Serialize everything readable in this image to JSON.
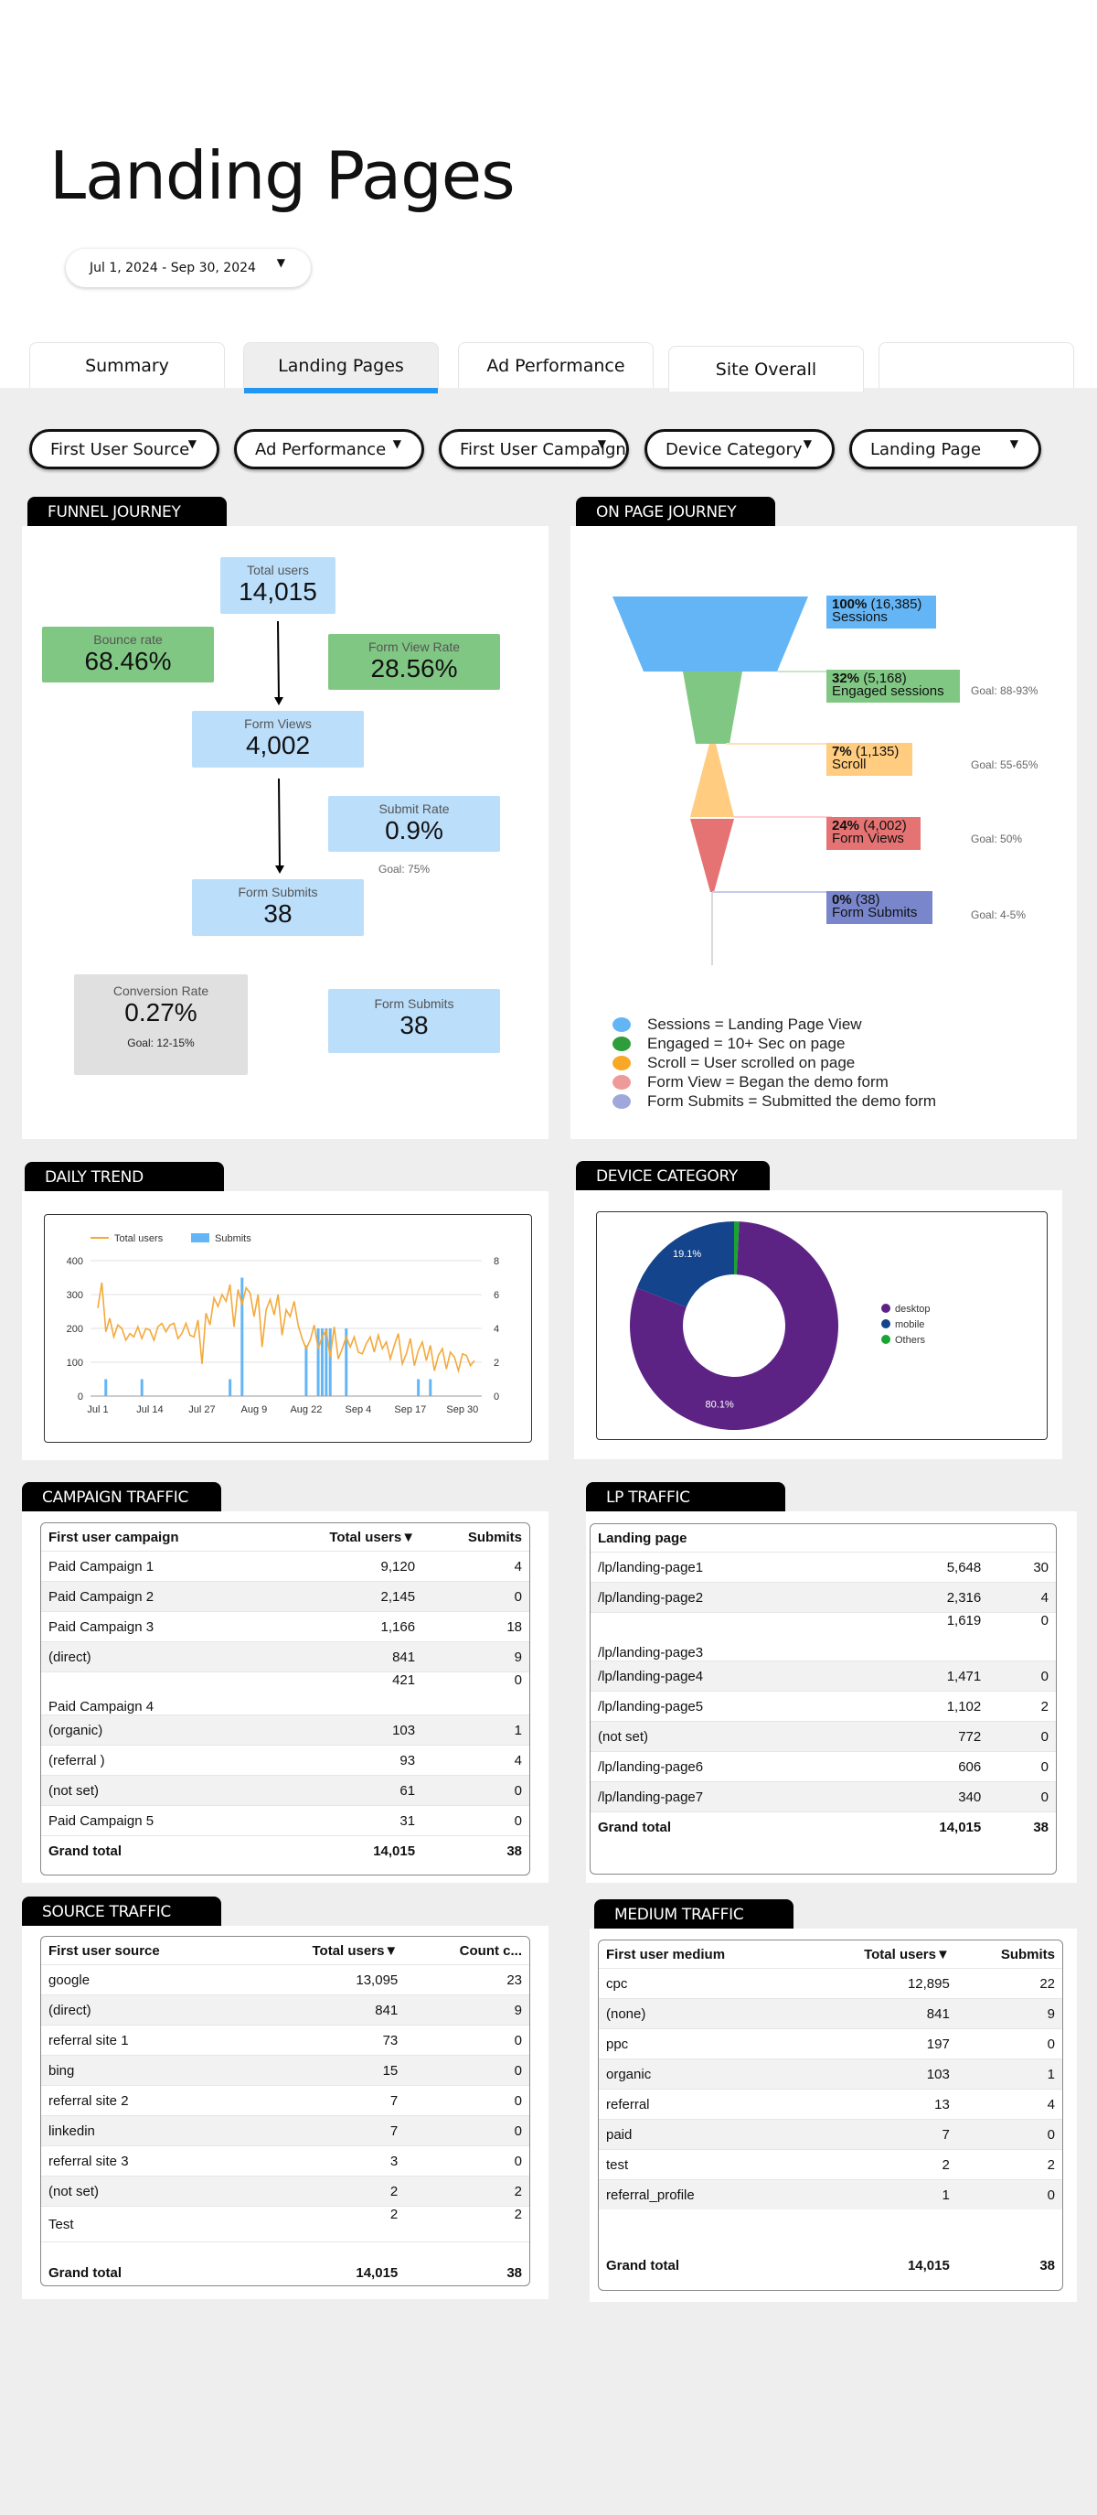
{
  "page_title": "Landing Pages",
  "date_range": "Jul 1, 2024 - Sep 30, 2024",
  "tabs": [
    "Summary",
    "Landing Pages",
    "Ad Performance",
    "Site Overall",
    ""
  ],
  "active_tab": 1,
  "filters": [
    "First User Source",
    "Ad Performance",
    "First User Campaign",
    "Device Category",
    "Landing Page"
  ],
  "funnel_journey": {
    "title": "FUNNEL JOURNEY",
    "total_users_label": "Total users",
    "total_users": "14,015",
    "bounce_rate_label": "Bounce rate",
    "bounce_rate": "68.46%",
    "form_view_rate_label": "Form View Rate",
    "form_view_rate": "28.56%",
    "form_views_label": "Form Views",
    "form_views": "4,002",
    "submit_rate_label": "Submit Rate",
    "submit_rate": "0.9%",
    "submit_goal": "Goal: 75%",
    "form_submits_label": "Form Submits",
    "form_submits": "38",
    "conversion_rate_label": "Conversion Rate",
    "conversion_rate": "0.27%",
    "conversion_goal": "Goal: 12-15%",
    "form_submits2_label": "Form Submits",
    "form_submits2": "38"
  },
  "on_page_journey": {
    "title": "ON PAGE JOURNEY",
    "stages": [
      {
        "pct": "100%",
        "count": "(16,385)",
        "name": "Sessions",
        "goal": "",
        "color": "#64b5f6"
      },
      {
        "pct": "32%",
        "count": "(5,168)",
        "name": "Engaged sessions",
        "goal": "Goal: 88-93%",
        "color": "#81c784"
      },
      {
        "pct": "7%",
        "count": "(1,135)",
        "name": "Scroll",
        "goal": "Goal: 55-65%",
        "color": "#ffb74d"
      },
      {
        "pct": "24%",
        "count": "(4,002)",
        "name": "Form Views",
        "goal": "Goal: 50%",
        "color": "#e57373"
      },
      {
        "pct": "0%",
        "count": "(38)",
        "name": "Form Submits",
        "goal": "Goal: 4-5%",
        "color": "#7986cb"
      }
    ],
    "legend": [
      {
        "text": "Sessions = Landing Page View",
        "color": "#64b5f6"
      },
      {
        "text": "Engaged = 10+ Sec on page",
        "color": "#2e9d3a"
      },
      {
        "text": "Scroll = User scrolled on page",
        "color": "#f9a825"
      },
      {
        "text": "Form View = Began the demo form",
        "color": "#ef9a9a"
      },
      {
        "text": "Form Submits = Submitted the demo form",
        "color": "#9fa8da"
      }
    ]
  },
  "daily_trend": {
    "title": "DAILY TREND",
    "legend": {
      "users": "Total users",
      "submits": "Submits"
    },
    "colors": {
      "users": "#f4a93a",
      "submits": "#64b5f6"
    },
    "left_ticks": [
      "0",
      "100",
      "200",
      "300",
      "400"
    ],
    "right_ticks": [
      "0",
      "2",
      "4",
      "6",
      "8"
    ],
    "x_ticks": [
      "Jul 1",
      "Jul 14",
      "Jul 27",
      "Aug 9",
      "Aug 22",
      "Sep 4",
      "Sep 17",
      "Sep 30"
    ]
  },
  "chart_data": [
    {
      "type": "line",
      "title": "",
      "series": [
        {
          "name": "Total users",
          "axis": "left",
          "values": [
            260,
            335,
            190,
            230,
            175,
            210,
            200,
            165,
            185,
            175,
            205,
            170,
            200,
            195,
            165,
            205,
            215,
            190,
            210,
            215,
            170,
            185,
            215,
            180,
            175,
            225,
            95,
            245,
            210,
            290,
            265,
            300,
            280,
            330,
            205,
            315,
            270,
            320,
            305,
            235,
            300,
            145,
            255,
            285,
            240,
            300,
            180,
            255,
            235,
            280,
            210,
            170,
            140,
            165,
            210,
            140,
            175,
            195,
            115,
            205,
            110,
            140,
            175,
            145,
            175,
            130,
            125,
            155,
            175,
            130,
            180,
            140,
            160,
            110,
            150,
            185,
            95,
            125,
            170,
            90,
            135,
            160,
            105,
            150,
            75,
            120,
            140,
            80,
            130,
            115,
            75,
            125,
            120,
            90,
            105
          ]
        },
        {
          "name": "Submits",
          "axis": "right",
          "type": "bar",
          "values": [
            0,
            0,
            1,
            0,
            0,
            0,
            0,
            0,
            0,
            0,
            0,
            1,
            0,
            0,
            0,
            0,
            0,
            0,
            0,
            0,
            0,
            0,
            0,
            0,
            0,
            0,
            0,
            0,
            0,
            0,
            0,
            0,
            0,
            1,
            0,
            0,
            7,
            0,
            0,
            0,
            0,
            0,
            0,
            0,
            0,
            0,
            0,
            0,
            0,
            0,
            0,
            0,
            3,
            0,
            0,
            4,
            4,
            4,
            4,
            0,
            0,
            0,
            4,
            0,
            0,
            0,
            0,
            0,
            0,
            0,
            0,
            0,
            0,
            0,
            0,
            0,
            0,
            0,
            0,
            0,
            1,
            0,
            0,
            1,
            0,
            0,
            0,
            0,
            0,
            0,
            0,
            0,
            0,
            0,
            0
          ]
        }
      ],
      "ylim_left": [
        0,
        400
      ],
      "ylim_right": [
        0,
        8
      ]
    },
    {
      "type": "pie",
      "title": "",
      "categories": [
        "desktop",
        "mobile",
        "Others"
      ],
      "values": [
        80.1,
        19.1,
        0.8
      ],
      "colors": [
        "#5c2384",
        "#14448c",
        "#1aa533"
      ],
      "labels": [
        "80.1%",
        "19.1%",
        ""
      ]
    }
  ],
  "device_category": {
    "title": "DEVICE CATEGORY"
  },
  "campaign_traffic": {
    "title": "CAMPAIGN TRAFFIC",
    "headers": [
      "First user campaign",
      "Total users▼",
      "Submits"
    ],
    "rows": [
      [
        "Paid Campaign 1",
        "9,120",
        "4"
      ],
      [
        "Paid Campaign 2",
        "2,145",
        "0"
      ],
      [
        "Paid Campaign 3",
        "1,166",
        "18"
      ],
      [
        "(direct)",
        "841",
        "9"
      ],
      [
        "Paid Campaign 4",
        "421",
        "0"
      ],
      [
        "(organic)",
        "103",
        "1"
      ],
      [
        "(referral )",
        "93",
        "4"
      ],
      [
        "(not set)",
        "61",
        "0"
      ],
      [
        "Paid Campaign 5",
        "31",
        "0"
      ]
    ],
    "total": [
      "Grand total",
      "14,015",
      "38"
    ]
  },
  "lp_traffic": {
    "title": "LP TRAFFIC",
    "headers": [
      "Landing page",
      "",
      ""
    ],
    "rows": [
      [
        "/lp/landing-page1",
        "5,648",
        "30"
      ],
      [
        "/lp/landing-page2",
        "2,316",
        "4"
      ],
      [
        "/lp/landing-page3",
        "1,619",
        "0"
      ],
      [
        "/lp/landing-page4",
        "1,471",
        "0"
      ],
      [
        "/lp/landing-page5",
        "1,102",
        "2"
      ],
      [
        "(not set)",
        "772",
        "0"
      ],
      [
        "/lp/landing-page6",
        "606",
        "0"
      ],
      [
        "/lp/landing-page7",
        "340",
        "0"
      ]
    ],
    "total": [
      "Grand total",
      "14,015",
      "38"
    ]
  },
  "source_traffic": {
    "title": "SOURCE TRAFFIC",
    "headers": [
      "First user source",
      "Total users▼",
      "Count c..."
    ],
    "rows": [
      [
        "google",
        "13,095",
        "23"
      ],
      [
        "(direct)",
        "841",
        "9"
      ],
      [
        "referral site 1",
        "73",
        "0"
      ],
      [
        "bing",
        "15",
        "0"
      ],
      [
        "referral site 2",
        "7",
        "0"
      ],
      [
        "linkedin",
        "7",
        "0"
      ],
      [
        "referral site 3",
        "3",
        "0"
      ],
      [
        "(not set)",
        "2",
        "2"
      ],
      [
        "Test",
        "2",
        "2"
      ]
    ],
    "total": [
      "Grand total",
      "14,015",
      "38"
    ]
  },
  "medium_traffic": {
    "title": "MEDIUM TRAFFIC",
    "headers": [
      "First user medium",
      "Total users▼",
      "Submits"
    ],
    "rows": [
      [
        "cpc",
        "12,895",
        "22"
      ],
      [
        "(none)",
        "841",
        "9"
      ],
      [
        "ppc",
        "197",
        "0"
      ],
      [
        "organic",
        "103",
        "1"
      ],
      [
        "referral",
        "13",
        "4"
      ],
      [
        "paid",
        "7",
        "0"
      ],
      [
        "test",
        "2",
        "2"
      ],
      [
        "referral_profile",
        "1",
        "0"
      ]
    ],
    "total": [
      "Grand total",
      "14,015",
      "38"
    ]
  }
}
